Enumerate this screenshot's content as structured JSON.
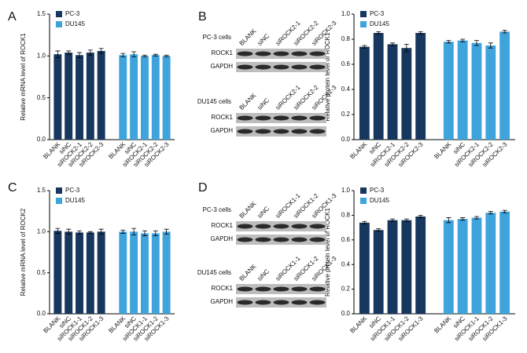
{
  "panel_labels": [
    "A",
    "B",
    "C",
    "D"
  ],
  "chart_data": [
    {
      "type": "bar",
      "ylabel": "Relative mRNA level of ROCK1",
      "categories": [
        "BLANK",
        "siNC",
        "siROCK2-1",
        "siROCK2-2",
        "siROCK2-3"
      ],
      "series": [
        {
          "name": "PC-3",
          "color": "#17375e",
          "values": [
            1.02,
            1.04,
            1.01,
            1.04,
            1.06
          ],
          "errors": [
            0.04,
            0.02,
            0.03,
            0.03,
            0.03
          ]
        },
        {
          "name": "DU145",
          "color": "#3fa3dc",
          "values": [
            1.01,
            1.02,
            1.0,
            1.01,
            1.0
          ],
          "errors": [
            0.02,
            0.03,
            0.01,
            0.01,
            0.01
          ]
        }
      ],
      "ylim": [
        0,
        1.5
      ],
      "yticks": [
        {
          "value": 0,
          "label": "0.0"
        },
        0.5,
        {
          "value": 1,
          "label": "1.0"
        },
        1.5
      ]
    },
    {
      "type": "bar",
      "ylabel": "Relative protein level of ROCK1",
      "categories": [
        "BLANK",
        "siNC",
        "siROCK2-1",
        "siROCK2-2",
        "siROCK2-3"
      ],
      "series": [
        {
          "name": "PC-3",
          "color": "#17375e",
          "values": [
            0.74,
            0.85,
            0.76,
            0.73,
            0.85
          ],
          "errors": [
            0.01,
            0.01,
            0.01,
            0.03,
            0.01
          ]
        },
        {
          "name": "DU145",
          "color": "#3fa3dc",
          "values": [
            0.78,
            0.79,
            0.77,
            0.75,
            0.86
          ],
          "errors": [
            0.01,
            0.01,
            0.02,
            0.02,
            0.01
          ]
        }
      ],
      "ylim": [
        0,
        1
      ],
      "yticks": [
        {
          "value": 0,
          "label": "0.0"
        },
        0.2,
        0.4,
        0.6,
        0.8,
        {
          "value": 1,
          "label": "1.0"
        }
      ]
    },
    {
      "type": "bar",
      "ylabel": "Relative mRNA level of ROCK2",
      "categories": [
        "BLANK",
        "siNC",
        "siROCK1-1",
        "siROCK1-2",
        "siROCK1-3"
      ],
      "series": [
        {
          "name": "PC-3",
          "color": "#17375e",
          "values": [
            1.01,
            1.0,
            0.99,
            0.99,
            1.0
          ],
          "errors": [
            0.03,
            0.03,
            0.02,
            0.01,
            0.03
          ]
        },
        {
          "name": "DU145",
          "color": "#3fa3dc",
          "values": [
            1.0,
            1.0,
            0.98,
            0.98,
            1.0
          ],
          "errors": [
            0.02,
            0.04,
            0.03,
            0.03,
            0.03
          ]
        }
      ],
      "ylim": [
        0,
        1.5
      ],
      "yticks": [
        {
          "value": 0,
          "label": "0.0"
        },
        0.5,
        {
          "value": 1,
          "label": "1.0"
        },
        1.5
      ]
    },
    {
      "type": "bar",
      "ylabel": "Relative protein level of ROCK1",
      "categories": [
        "BLANK",
        "siNC",
        "siROCK1-1",
        "siROCK1-2",
        "siROCK1-3"
      ],
      "series": [
        {
          "name": "PC-3",
          "color": "#17375e",
          "values": [
            0.74,
            0.68,
            0.76,
            0.76,
            0.79
          ],
          "errors": [
            0.01,
            0.01,
            0.01,
            0.01,
            0.01
          ]
        },
        {
          "name": "DU145",
          "color": "#3fa3dc",
          "values": [
            0.76,
            0.77,
            0.78,
            0.82,
            0.83
          ],
          "errors": [
            0.02,
            0.01,
            0.01,
            0.01,
            0.01
          ]
        }
      ],
      "ylim": [
        0,
        1
      ],
      "yticks": [
        {
          "value": 0,
          "label": "0.0"
        },
        0.2,
        0.4,
        0.6,
        0.8,
        {
          "value": 1,
          "label": "1.0"
        }
      ]
    }
  ],
  "blots": [
    {
      "cells": "PC-3 cells",
      "lanes": [
        "BLANK",
        "siNC",
        "siROCK2-1",
        "siROCK2-2",
        "siROCK2-3"
      ],
      "rows": [
        "ROCK1",
        "GAPDH"
      ]
    },
    {
      "cells": "DU145 cells",
      "lanes": [
        "BLANK",
        "siNC",
        "siROCK2-1",
        "siROCK2-2",
        "siROCK2-3"
      ],
      "rows": [
        "ROCK1",
        "GAPDH"
      ]
    },
    {
      "cells": "PC-3 cells",
      "lanes": [
        "BLANK",
        "siNC",
        "siROCK1-1",
        "siROCK1-2",
        "siROCK1-3"
      ],
      "rows": [
        "ROCK1",
        "GAPDH"
      ]
    },
    {
      "cells": "DU145 cells",
      "lanes": [
        "BLANK",
        "siNC",
        "siROCK1-1",
        "siROCK1-2",
        "siROCK1-3"
      ],
      "rows": [
        "ROCK1",
        "GAPDH"
      ]
    }
  ]
}
